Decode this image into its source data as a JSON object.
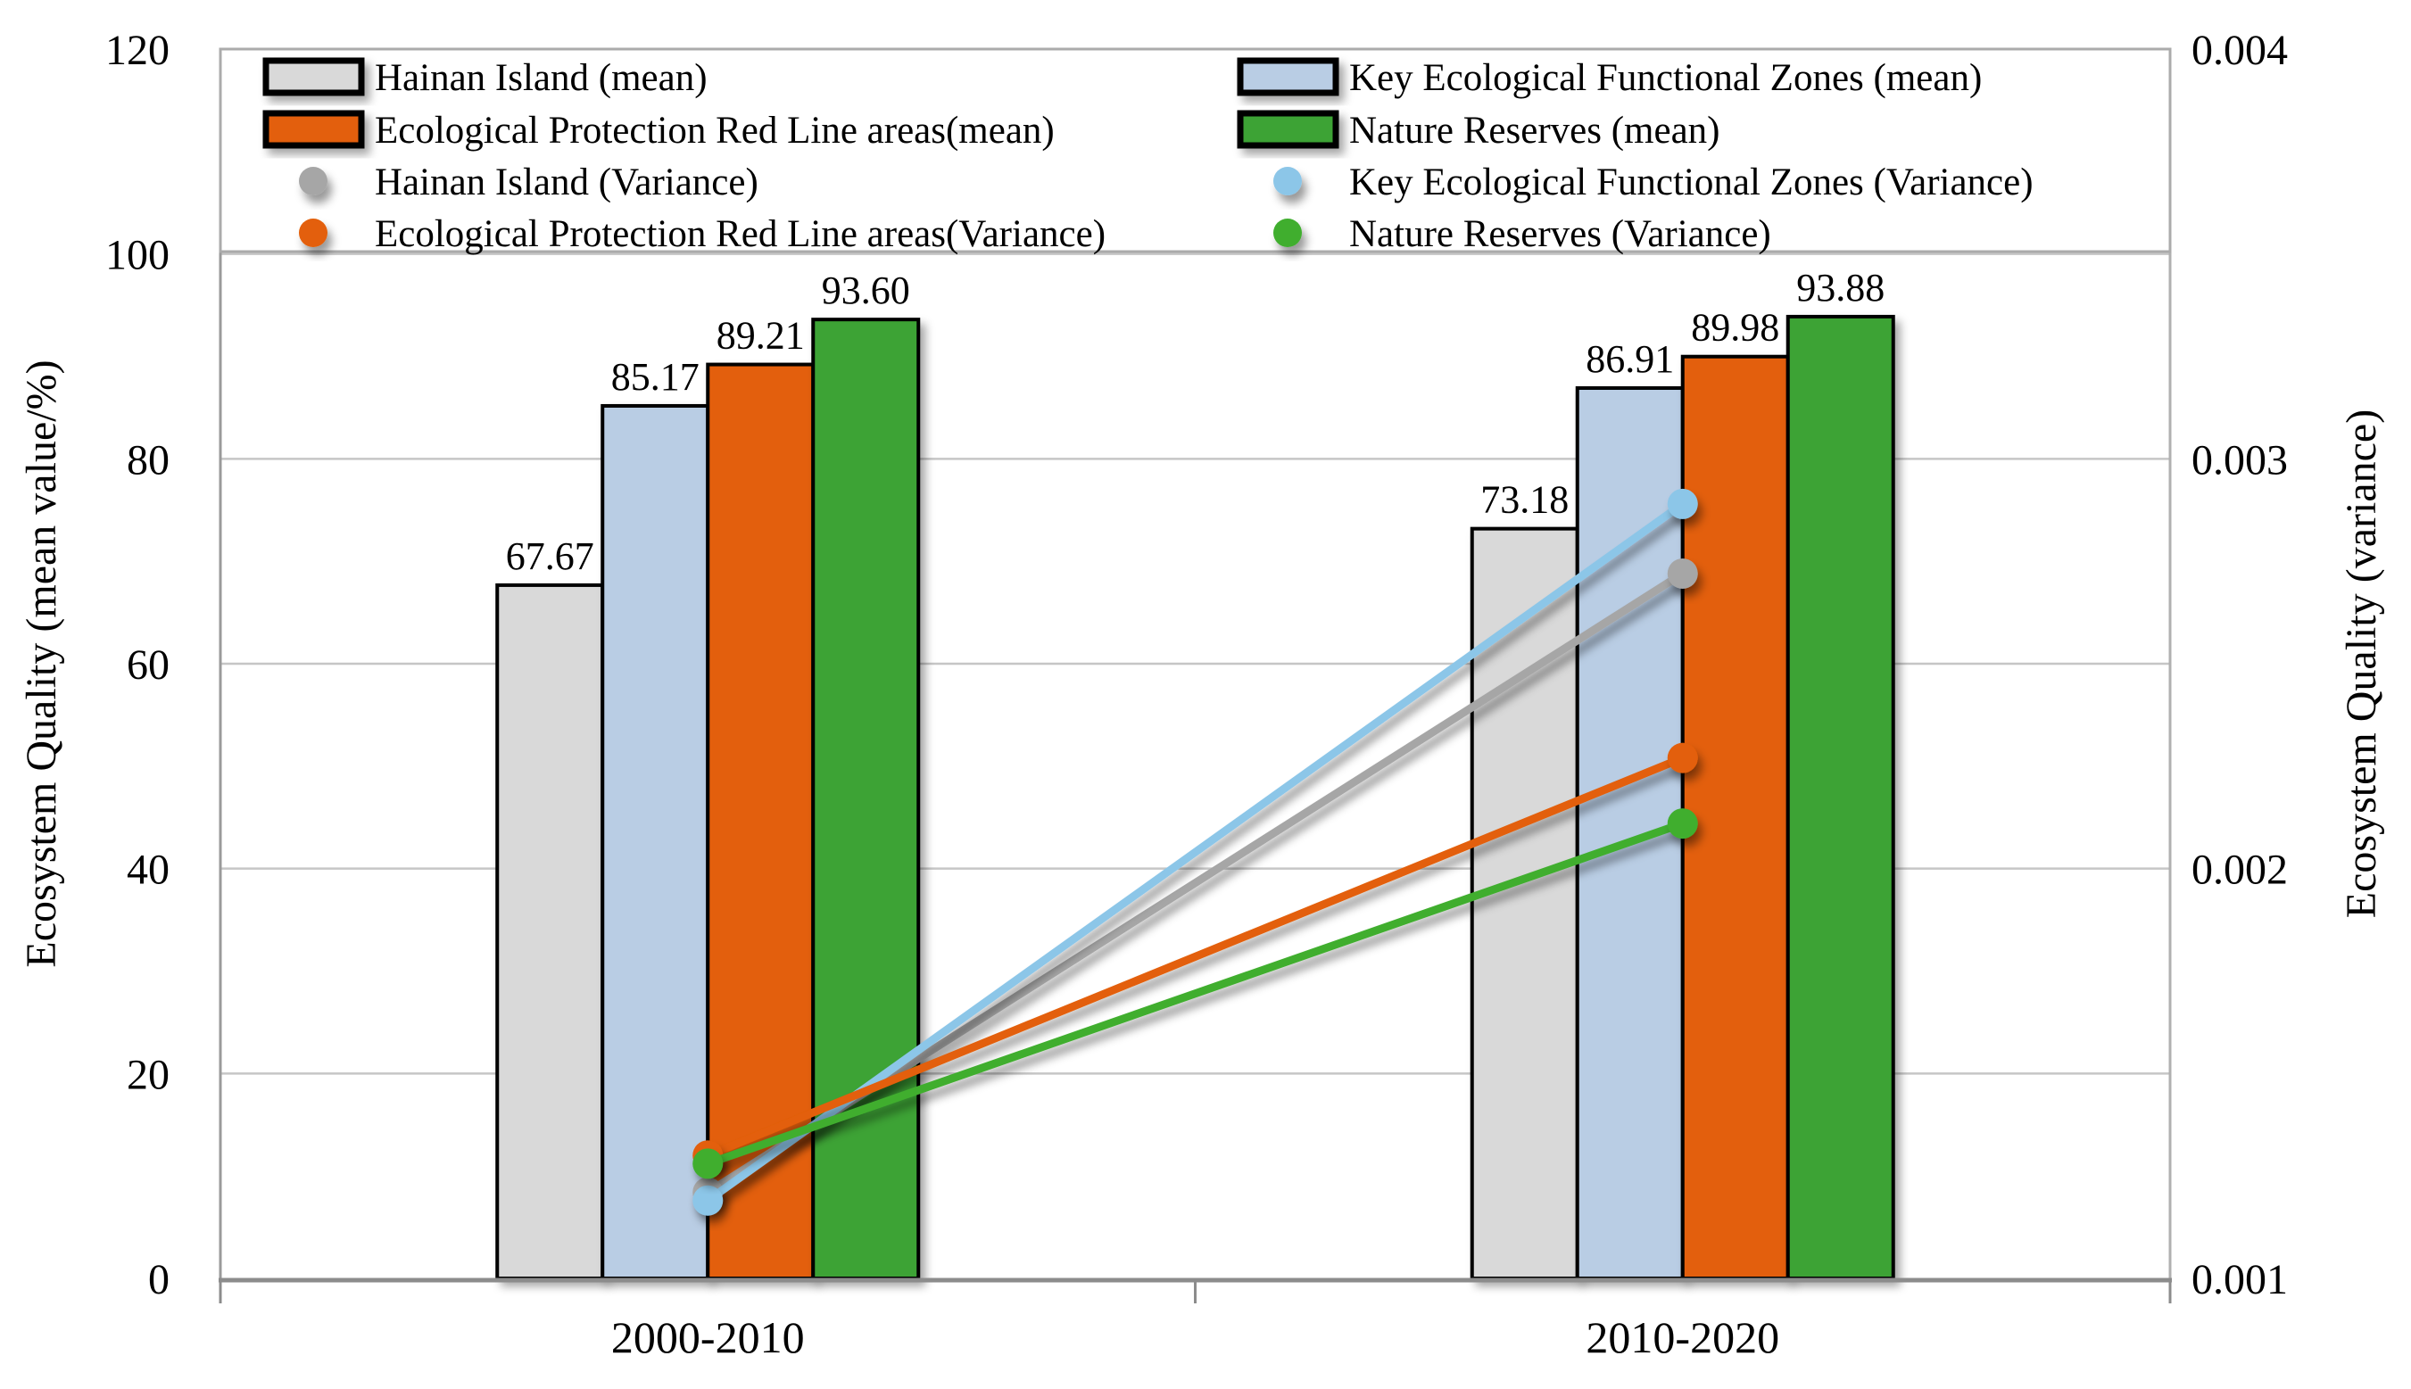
{
  "chart_data": {
    "type": "bar+line combo with dual y-axes",
    "title": "",
    "categories": [
      "2000-2010",
      "2010-2020"
    ],
    "left_axis": {
      "label": "Ecosystem Quality (mean value/%)",
      "min": 0,
      "max": 120,
      "ticks": [
        "0",
        "20",
        "40",
        "60",
        "80",
        "100",
        "120"
      ]
    },
    "right_axis": {
      "label": "Ecosystem Quality (variance)",
      "min": 0.001,
      "max": 0.004,
      "ticks": [
        "0.001",
        "0.002",
        "0.003",
        "0.004"
      ]
    },
    "grid": "horizontal gridlines at left-axis ticks",
    "legend_position": "top inside plot, 2 columns, boxed",
    "series": [
      {
        "name": "Hainan Island (mean)",
        "kind": "bar",
        "axis": "left",
        "color": "#d9d9d9",
        "values": [
          67.67,
          73.18
        ],
        "data_labels": [
          "67.67",
          "73.18"
        ]
      },
      {
        "name": "Key Ecological Functional Zones (mean)",
        "kind": "bar",
        "axis": "left",
        "color": "#b9cde4",
        "values": [
          85.17,
          86.91
        ],
        "data_labels": [
          "85.17",
          "86.91"
        ]
      },
      {
        "name": "Ecological Protection Red Line areas(mean)",
        "kind": "bar",
        "axis": "left",
        "color": "#e35f07",
        "values": [
          89.21,
          89.98
        ],
        "data_labels": [
          "89.21",
          "89.98"
        ]
      },
      {
        "name": "Nature Reserves (mean)",
        "kind": "bar",
        "axis": "left",
        "color": "#3ea335",
        "values": [
          93.6,
          93.88
        ],
        "data_labels": [
          "93.60",
          "93.88"
        ]
      },
      {
        "name": "Hainan Island (Variance)",
        "kind": "line",
        "axis": "right",
        "color": "#a6a6a6",
        "values": [
          0.00121,
          0.00272
        ]
      },
      {
        "name": "Key Ecological Functional Zones (Variance)",
        "kind": "line",
        "axis": "right",
        "color": "#8cc6e8",
        "values": [
          0.00119,
          0.00289
        ]
      },
      {
        "name": "Ecological Protection Red Line areas(Variance)",
        "kind": "line",
        "axis": "right",
        "color": "#e35f07",
        "values": [
          0.0013,
          0.00227
        ]
      },
      {
        "name": "Nature Reserves (Variance)",
        "kind": "line",
        "axis": "right",
        "color": "#3fae2e",
        "values": [
          0.00128,
          0.00211
        ]
      }
    ],
    "legend_entries": [
      "Hainan Island (mean)",
      "Key Ecological Functional Zones (mean)",
      "Ecological Protection Red Line areas(mean)",
      "Nature Reserves (mean)",
      "Hainan Island (Variance)",
      "Key Ecological Functional Zones (Variance)",
      "Ecological Protection Red Line areas(Variance)",
      "Nature Reserves (Variance)"
    ],
    "style": {
      "background": "#ffffff",
      "gridline_color": "#c6c6c6",
      "plot_border_color": "#b0b0b0",
      "axis_line_color": "#8c8c8c",
      "bar_border_color": "#000000",
      "text_color": "#000000"
    }
  }
}
